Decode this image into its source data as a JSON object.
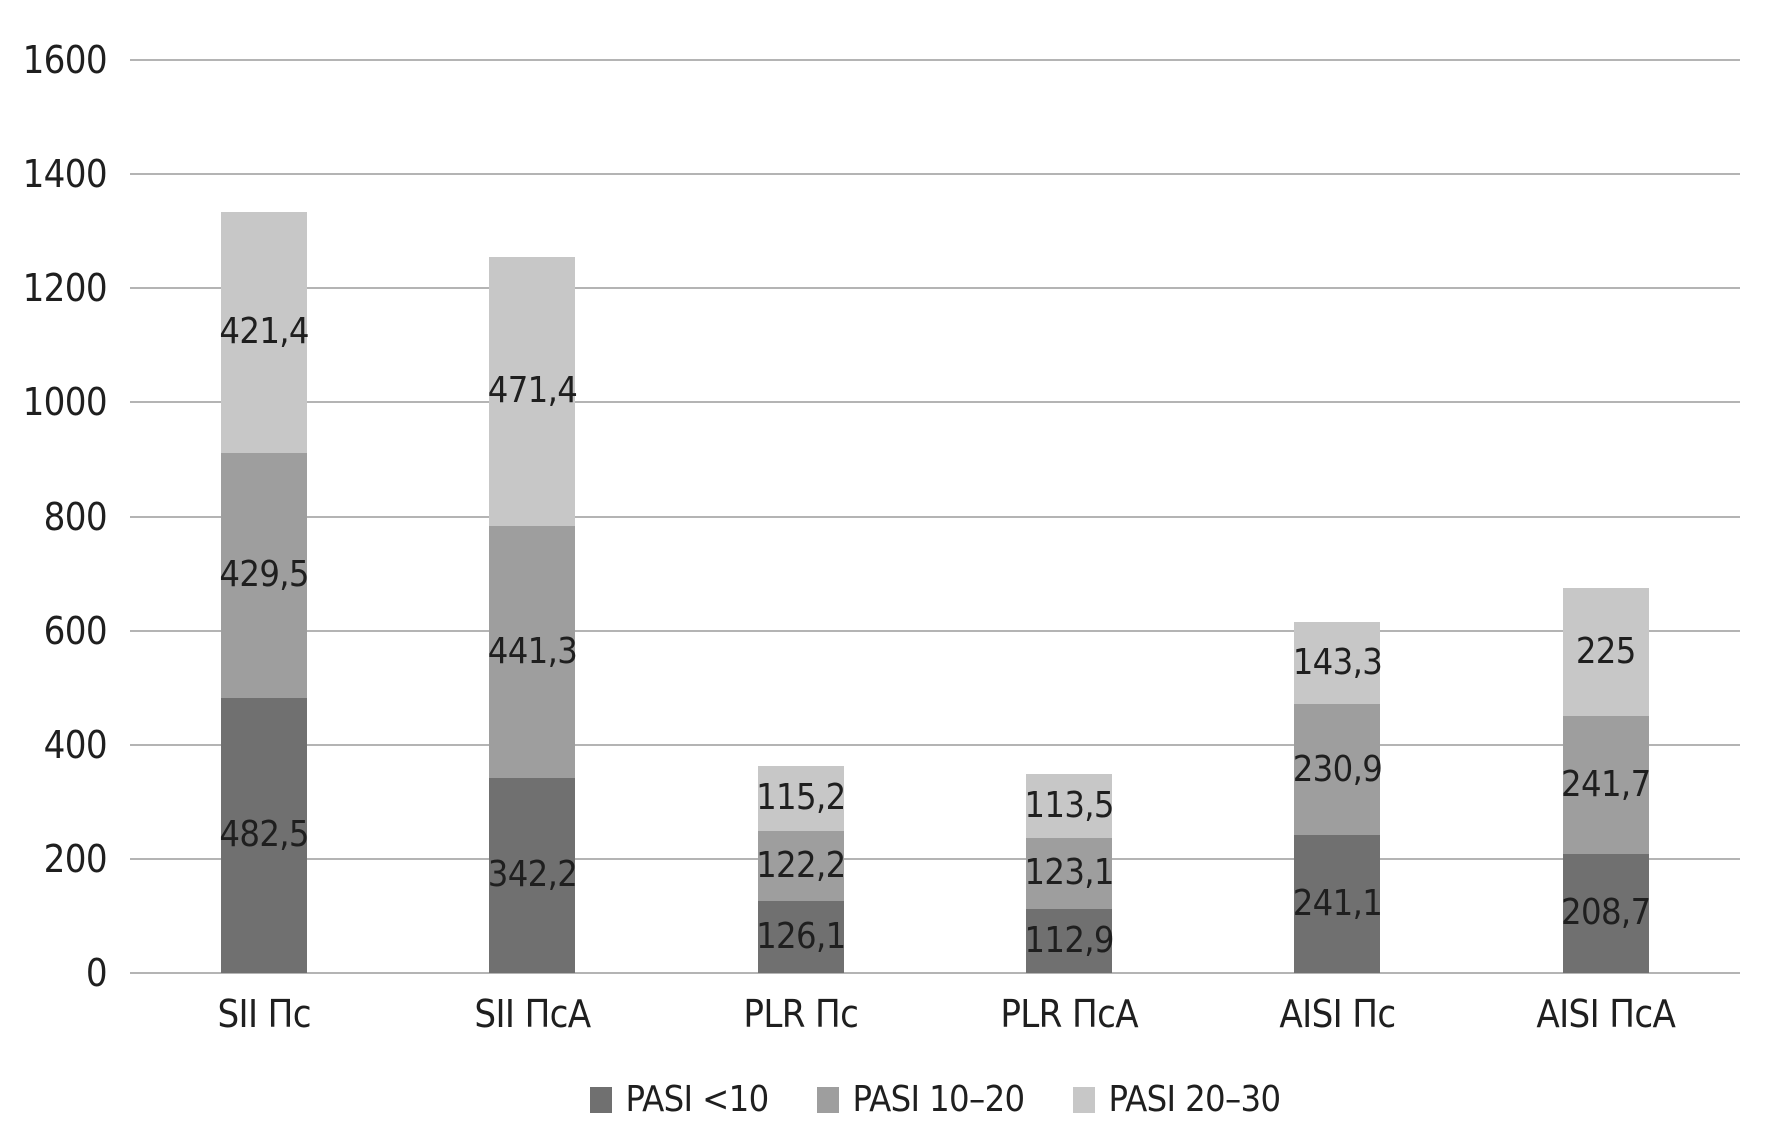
{
  "chart_data": {
    "type": "bar",
    "stacked": true,
    "title": "",
    "xlabel": "",
    "ylabel": "",
    "categories": [
      "SII Пс",
      "SII ПсА",
      "PLR Пс",
      "PLR ПсА",
      "AISI Пс",
      "AISI ПсА"
    ],
    "series": [
      {
        "name": "PASI <10",
        "color": "#707070",
        "values": [
          482.5,
          342.2,
          126.1,
          112.9,
          241.1,
          208.7
        ],
        "labels": [
          "482,5",
          "342,2",
          "126,1",
          "112,9",
          "241,1",
          "208,7"
        ]
      },
      {
        "name": "PASI 10–20",
        "color": "#9e9e9e",
        "values": [
          429.5,
          441.3,
          122.2,
          123.1,
          230.9,
          241.7
        ],
        "labels": [
          "429,5",
          "441,3",
          "122,2",
          "123,1",
          "230,9",
          "241,7"
        ]
      },
      {
        "name": "PASI 20–30",
        "color": "#c7c7c7",
        "values": [
          421.4,
          471.4,
          115.2,
          113.5,
          143.3,
          225
        ],
        "labels": [
          "421,4",
          "471,4",
          "115,2",
          "113,5",
          "143,3",
          "225"
        ]
      }
    ],
    "ylim": [
      0,
      1600
    ],
    "ytick_step": 200,
    "yticks": [
      "0",
      "200",
      "400",
      "600",
      "800",
      "1000",
      "1200",
      "1400",
      "1600"
    ],
    "grid": true,
    "legend_position": "bottom",
    "value_label_color": "#1f1f1f",
    "gridline_color": "#b4b4b4"
  }
}
